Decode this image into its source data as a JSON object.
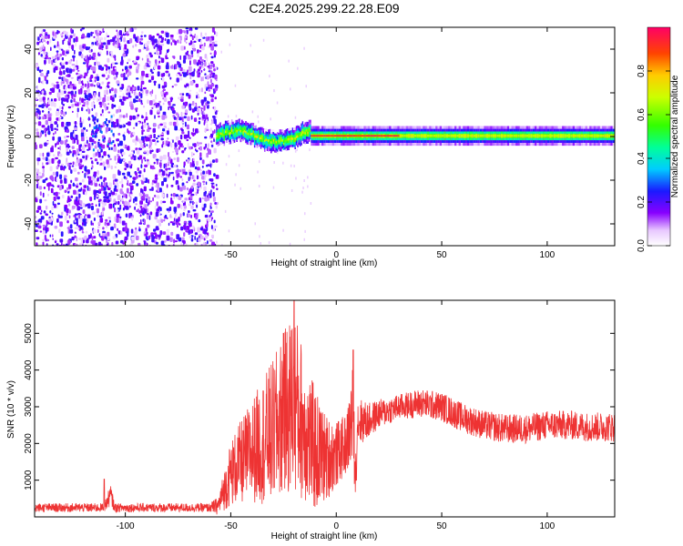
{
  "title": "C2E4.2025.299.22.28.E09",
  "colors": {
    "line": "#ee3333",
    "background": "#ffffff",
    "axis": "#000000"
  },
  "chart_data": [
    {
      "type": "heatmap",
      "xlabel": "Height of straight line (km)",
      "ylabel": "Frequency (Hz)",
      "xlim": [
        -143,
        132
      ],
      "ylim": [
        -50,
        50
      ],
      "x_ticks": [
        -100,
        -50,
        0,
        50,
        100
      ],
      "y_ticks": [
        -40,
        -20,
        0,
        20,
        40
      ],
      "colorbar": {
        "label": "Normalized spectral amplitude",
        "range": [
          0,
          1
        ],
        "ticks": [
          "0.0",
          "0.2",
          "0.4",
          "0.6",
          "0.8"
        ],
        "colormap": "rainbow-white"
      },
      "regions": [
        {
          "x_range": [
            -143,
            -57
          ],
          "freq_range": [
            -50,
            50
          ],
          "amplitude": 0.15,
          "description_value": "noise"
        },
        {
          "x_range": [
            -57,
            -12
          ],
          "freq_center": 0,
          "freq_halfwidth": 5,
          "amplitude": 0.6
        },
        {
          "x_range": [
            -12,
            132
          ],
          "freq_center": 0,
          "freq_halfwidth": 3,
          "amplitude": 0.9
        }
      ]
    },
    {
      "type": "line",
      "xlabel": "Height of straight line (km)",
      "ylabel": "SNR (10 * v/v)",
      "xlim": [
        -143,
        132
      ],
      "ylim": [
        0,
        5900
      ],
      "x_ticks": [
        -100,
        -50,
        0,
        50,
        100
      ],
      "y_ticks": [
        1000,
        2000,
        3000,
        4000,
        5000
      ],
      "envelope": {
        "x": [
          -143,
          -110,
          -107,
          -105,
          -60,
          -56,
          -50,
          -40,
          -30,
          -25,
          -20,
          -15,
          -10,
          -5,
          0,
          5,
          8,
          9,
          10,
          15,
          20,
          30,
          40,
          50,
          60,
          70,
          80,
          90,
          100,
          110,
          120,
          132
        ],
        "center": [
          250,
          250,
          600,
          250,
          250,
          300,
          1200,
          1800,
          2300,
          2800,
          3200,
          2400,
          1800,
          1600,
          1700,
          2000,
          2800,
          1000,
          2600,
          2600,
          2800,
          3000,
          3100,
          3000,
          2700,
          2500,
          2400,
          2400,
          2500,
          2500,
          2450,
          2450
        ],
        "spread": [
          120,
          120,
          300,
          120,
          120,
          250,
          900,
          1400,
          2000,
          2200,
          2600,
          2000,
          1700,
          1200,
          900,
          800,
          1600,
          400,
          700,
          500,
          400,
          350,
          400,
          400,
          400,
          400,
          400,
          400,
          400,
          400,
          400,
          400
        ]
      },
      "peaks": [
        {
          "x": -110,
          "y": 1030
        },
        {
          "x": -20,
          "y": 5900
        },
        {
          "x": -25,
          "y": 5000
        },
        {
          "x": 8,
          "y": 4550
        },
        {
          "x": 9.5,
          "y": 1000
        }
      ]
    }
  ]
}
